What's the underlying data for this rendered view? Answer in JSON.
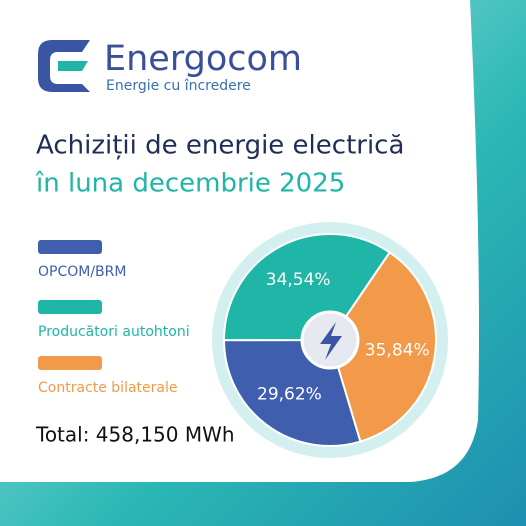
{
  "brand": {
    "name": "Energocom",
    "tagline": "Energie cu încredere"
  },
  "chart_data": {
    "type": "pie",
    "title": "Achiziții de energie electrică",
    "subtitle": "în luna decembrie 2025",
    "categories": [
      "OPCOM/BRM",
      "Producători autohtoni",
      "Contracte bilaterale"
    ],
    "values": [
      29.62,
      34.54,
      35.84
    ],
    "value_labels": [
      "29,62%",
      "34,54%",
      "35,84%"
    ],
    "colors": [
      "#3f5fae",
      "#1fb5a7",
      "#f29a4a"
    ],
    "total": "Total: 458,150 MWh"
  }
}
